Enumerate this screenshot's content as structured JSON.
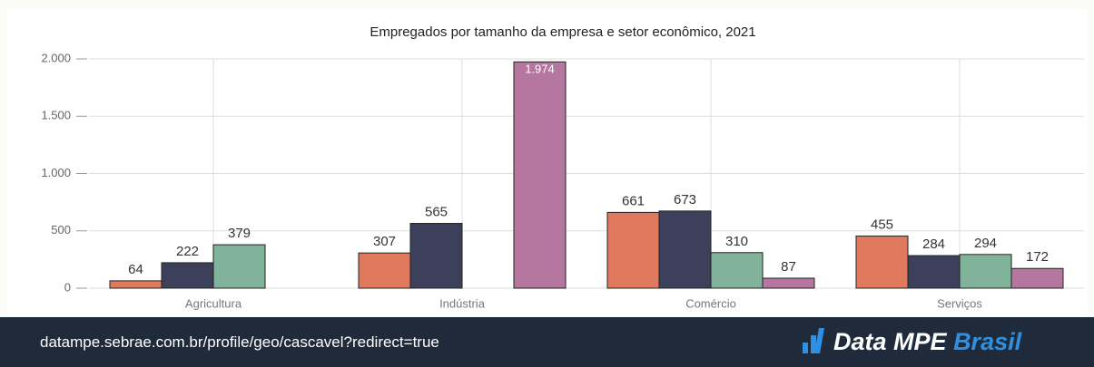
{
  "chart_data": {
    "type": "bar",
    "title": "Empregados por tamanho da empresa e setor econômico, 2021",
    "categories": [
      "Agricultura",
      "Indústria",
      "Comércio",
      "Serviços"
    ],
    "series": [
      {
        "color": "#e07a5f",
        "values": [
          64,
          307,
          661,
          455
        ]
      },
      {
        "color": "#3d405b",
        "values": [
          222,
          565,
          673,
          284
        ]
      },
      {
        "color": "#81b29a",
        "values": [
          379,
          null,
          310,
          294
        ]
      },
      {
        "color": "#b5779f",
        "values": [
          null,
          1974,
          87,
          172
        ],
        "value_labels": [
          null,
          "1.974",
          "87",
          "172"
        ]
      }
    ],
    "ylim": [
      0,
      2000
    ],
    "yticks": [
      0,
      500,
      {
        "value": 1000,
        "label": "1.000"
      },
      {
        "value": 1500,
        "label": "1.500"
      },
      {
        "value": 2000,
        "label": "2.000"
      }
    ],
    "grid": true
  },
  "footer": {
    "url": "datampe.sebrae.com.br/profile/geo/cascavel?redirect=true",
    "logo_main": "Data MPE",
    "logo_accent": "Brasil"
  }
}
